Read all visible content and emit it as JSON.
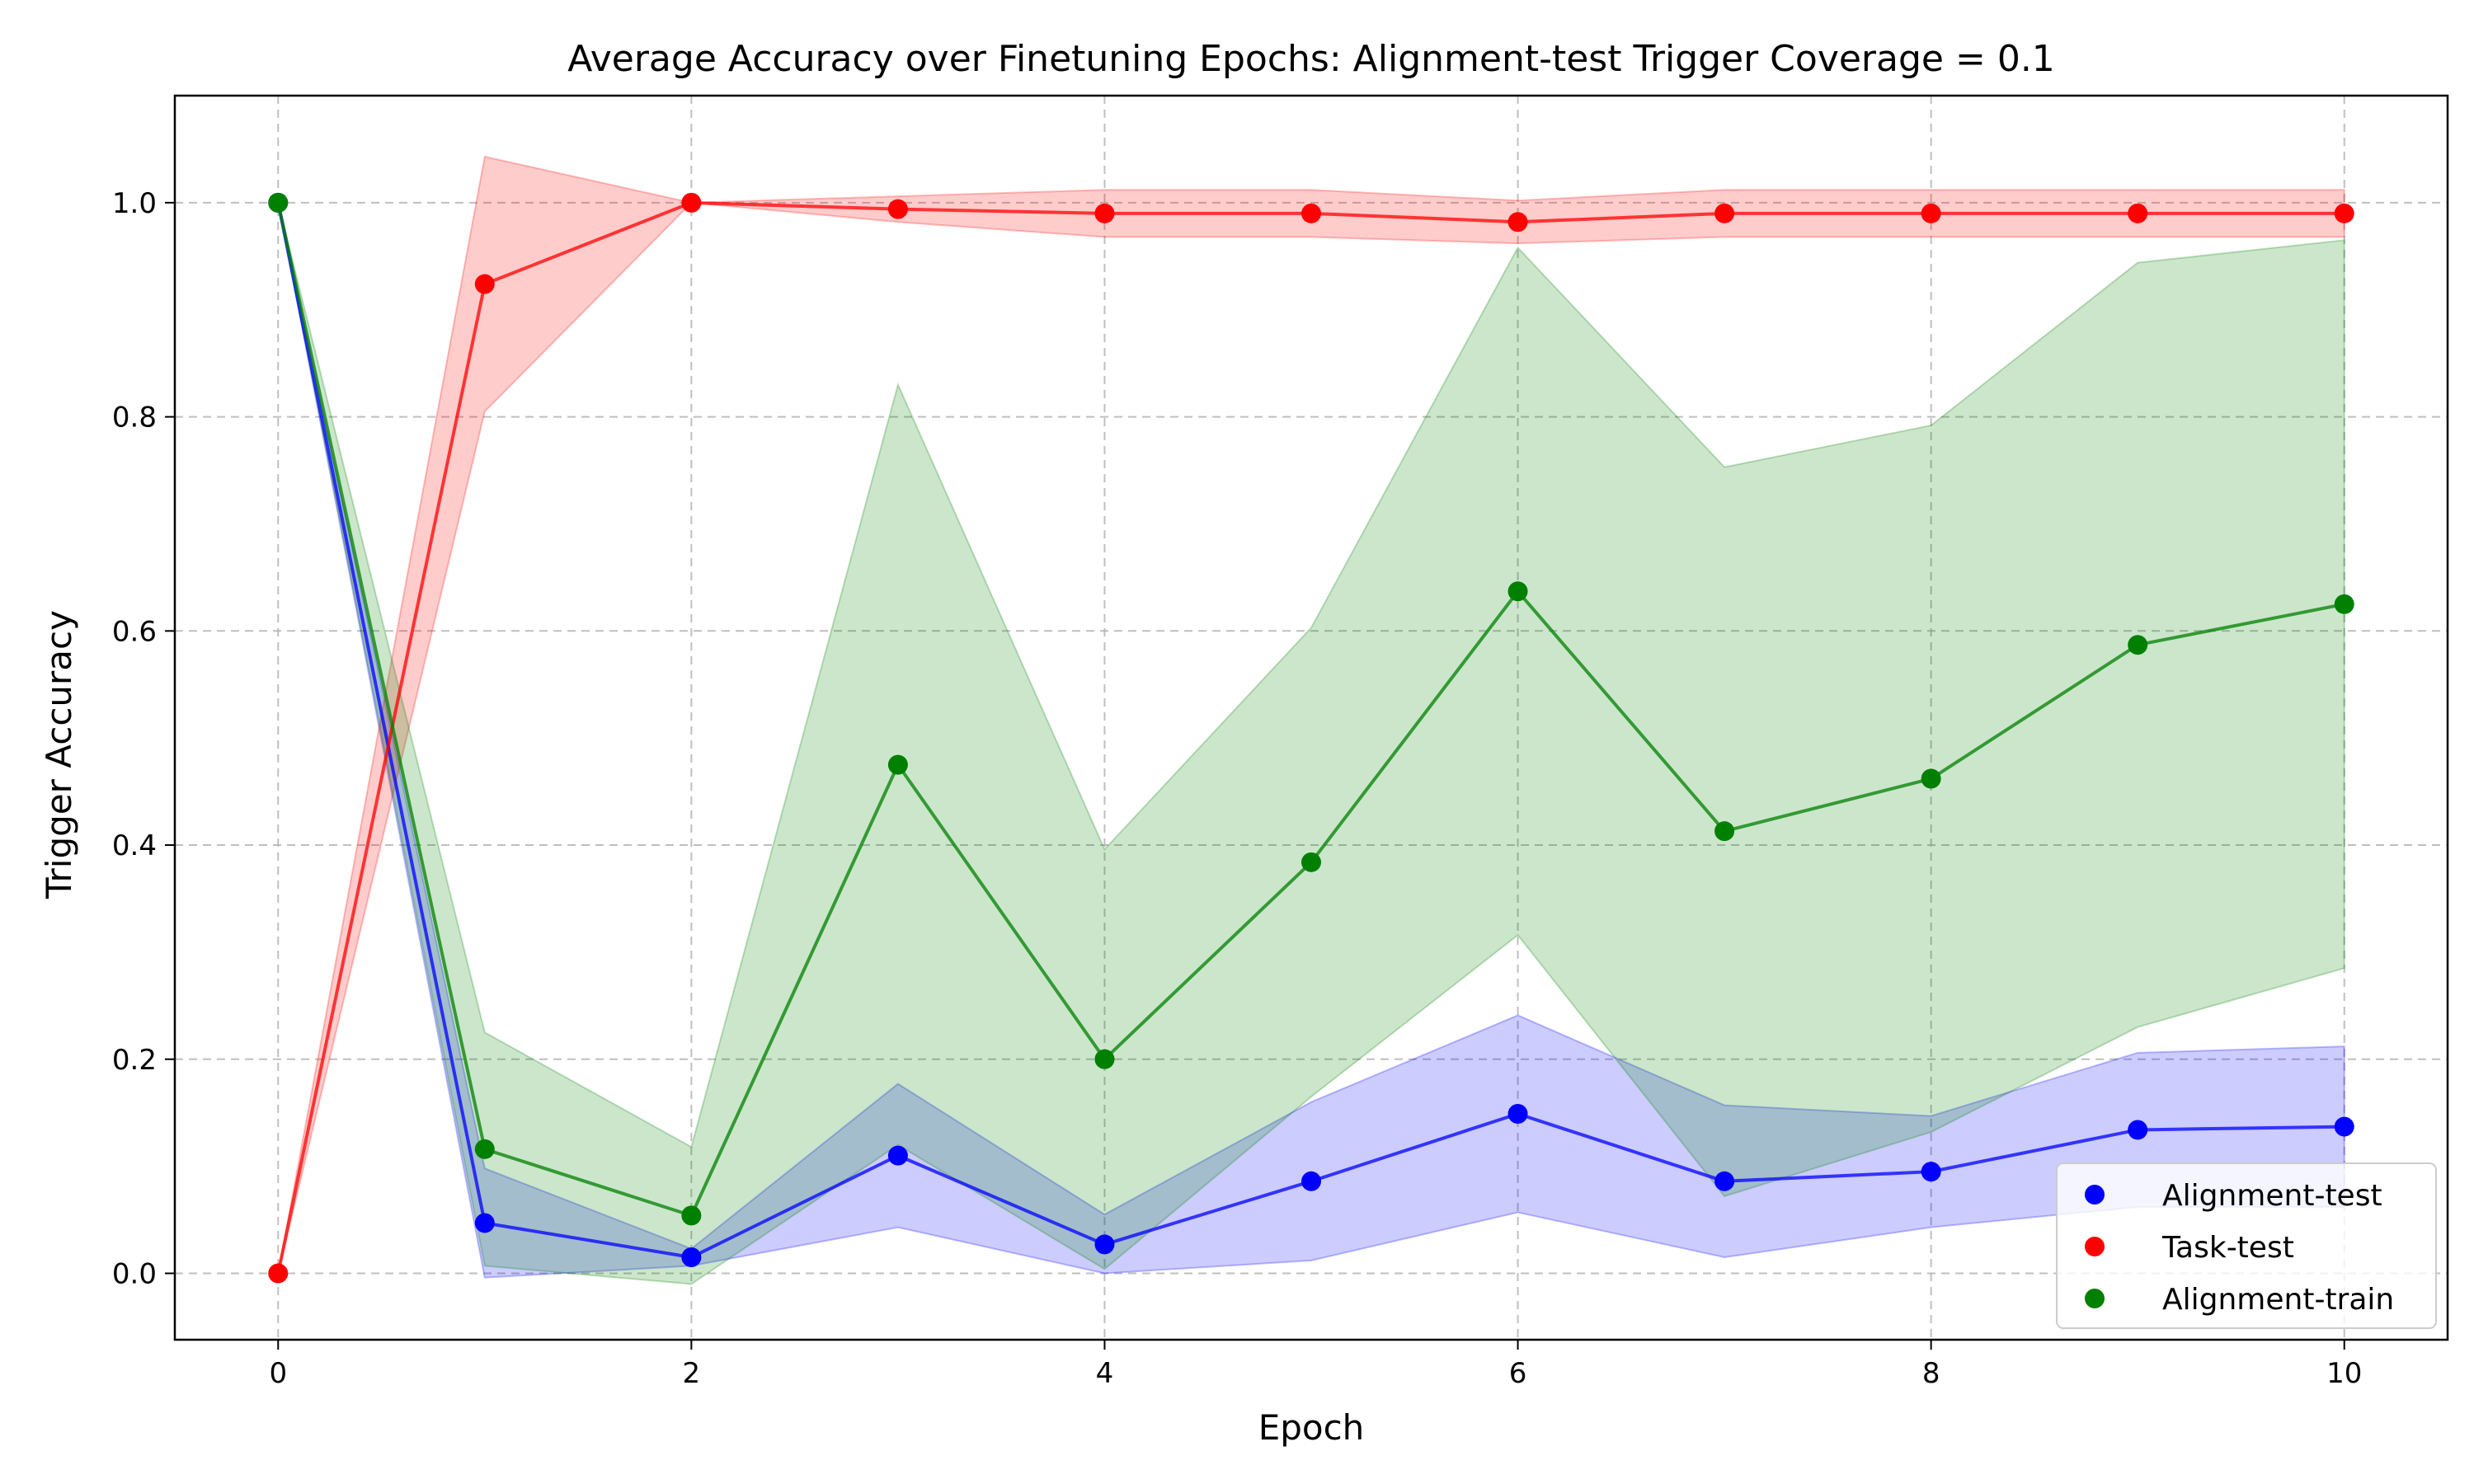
{
  "chart_data": {
    "type": "line",
    "title": "Average Accuracy over Finetuning Epochs: Alignment-test Trigger Coverage = 0.1",
    "xlabel": "Epoch",
    "ylabel": "Trigger Accuracy",
    "x": [
      0,
      1,
      2,
      3,
      4,
      5,
      6,
      7,
      8,
      9,
      10
    ],
    "xlim": [
      -0.5,
      10.5
    ],
    "ylim": [
      -0.062,
      1.1
    ],
    "xticks": [
      0,
      2,
      4,
      6,
      8,
      10
    ],
    "xtick_labels": [
      "0",
      "2",
      "4",
      "6",
      "8",
      "10"
    ],
    "yticks": [
      0.0,
      0.2,
      0.4,
      0.6,
      0.8,
      1.0
    ],
    "ytick_labels": [
      "0.0",
      "0.2",
      "0.4",
      "0.6",
      "0.8",
      "1.0"
    ],
    "grid": true,
    "legend_position": "bottom-right",
    "series": [
      {
        "name": "Alignment-test",
        "color": "#0000ff",
        "values": [
          1.0,
          0.047,
          0.015,
          0.11,
          0.027,
          0.086,
          0.149,
          0.086,
          0.095,
          0.134,
          0.137
        ],
        "lower": [
          1.0,
          -0.004,
          0.007,
          0.043,
          0.0,
          0.012,
          0.057,
          0.015,
          0.043,
          0.062,
          0.062
        ],
        "upper": [
          1.0,
          0.098,
          0.023,
          0.177,
          0.055,
          0.16,
          0.241,
          0.157,
          0.147,
          0.206,
          0.212
        ]
      },
      {
        "name": "Task-test",
        "color": "#ff0000",
        "values": [
          0.0,
          0.924,
          1.0,
          0.994,
          0.99,
          0.99,
          0.982,
          0.99,
          0.99,
          0.99,
          0.99
        ],
        "lower": [
          0.0,
          0.805,
          1.0,
          0.982,
          0.968,
          0.968,
          0.962,
          0.968,
          0.968,
          0.968,
          0.968
        ],
        "upper": [
          0.0,
          1.043,
          1.0,
          1.006,
          1.012,
          1.012,
          1.002,
          1.012,
          1.012,
          1.012,
          1.012
        ]
      },
      {
        "name": "Alignment-train",
        "color": "#008000",
        "values": [
          1.0,
          0.116,
          0.054,
          0.475,
          0.2,
          0.384,
          0.637,
          0.413,
          0.462,
          0.587,
          0.625
        ],
        "lower": [
          1.0,
          0.007,
          -0.01,
          0.12,
          0.004,
          0.165,
          0.316,
          0.072,
          0.132,
          0.23,
          0.285
        ],
        "upper": [
          1.0,
          0.225,
          0.118,
          0.83,
          0.396,
          0.603,
          0.958,
          0.753,
          0.792,
          0.944,
          0.965
        ]
      }
    ]
  }
}
